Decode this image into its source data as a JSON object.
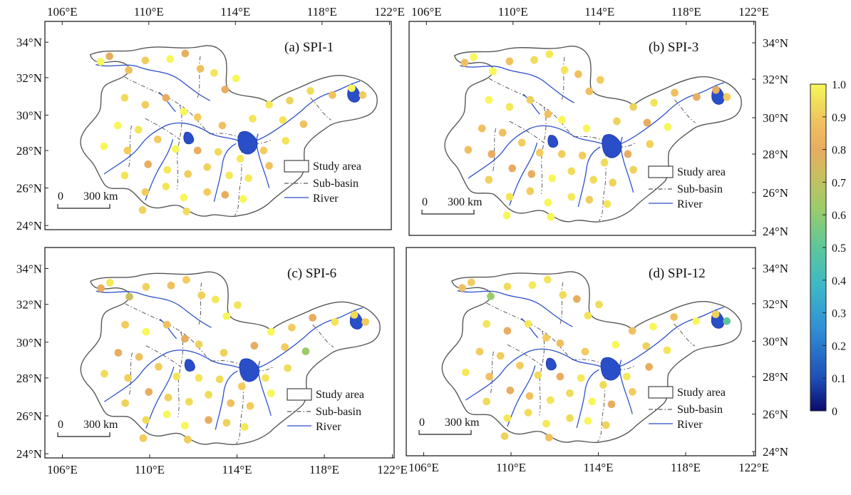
{
  "panels": [
    {
      "id": "a",
      "title": "(a) SPI-1",
      "stations": [
        [
          0.08,
          0.85
        ],
        [
          0.1,
          0.98
        ],
        [
          0.05,
          0.78
        ],
        [
          0.32,
          0.85
        ],
        [
          0.56,
          0.8
        ],
        [
          0.75,
          0.8
        ],
        [
          0.92,
          0.82
        ],
        [
          0.42,
          0.72
        ],
        [
          0.97,
          0.65
        ],
        [
          0.7,
          0.62
        ],
        [
          0.88,
          0.55
        ],
        [
          0.93,
          0.4
        ],
        [
          0.9,
          0.3
        ],
        [
          0.85,
          0.2
        ],
        [
          0.68,
          0.25
        ],
        [
          0.55,
          0.3
        ],
        [
          0.4,
          0.35
        ],
        [
          0.8,
          0.9
        ],
        [
          0.95,
          0.97
        ],
        [
          0.6,
          0.95
        ],
        [
          0.85,
          0.7
        ],
        [
          0.78,
          0.55
        ],
        [
          0.62,
          0.45
        ],
        [
          0.5,
          0.52
        ],
        [
          0.45,
          0.9
        ],
        [
          0.3,
          0.6
        ],
        [
          0.2,
          0.7
        ],
        [
          0.15,
          0.95
        ],
        [
          0.72,
          0.72
        ],
        [
          0.65,
          0.88
        ],
        [
          0.25,
          0.88
        ],
        [
          0.35,
          0.78
        ],
        [
          0.58,
          0.65
        ],
        [
          0.88,
          0.9
        ],
        [
          0.82,
          0.82
        ],
        [
          0.4,
          0.95
        ],
        [
          0.22,
          0.8
        ],
        [
          0.3,
          0.75
        ],
        [
          0.48,
          0.62
        ],
        [
          0.7,
          0.85
        ],
        [
          0.63,
          0.75
        ],
        [
          0.92,
          0.72
        ],
        [
          0.87,
          0.62
        ],
        [
          0.76,
          0.92
        ],
        [
          0.55,
          0.85
        ],
        [
          0.5,
          0.75
        ],
        [
          0.38,
          0.85
        ],
        [
          0.68,
          0.95
        ],
        [
          0.8,
          0.78
        ],
        [
          0.45,
          0.8
        ]
      ],
      "legend": [
        "Study area",
        "Sub-basin",
        "River"
      ],
      "scale": [
        "0",
        "300 km"
      ]
    },
    {
      "id": "b",
      "title": "(b) SPI-3",
      "stations": [],
      "legend": [
        "Study area",
        "Sub-basin",
        "River"
      ],
      "scale": [
        "0",
        "300 km"
      ]
    },
    {
      "id": "c",
      "title": "(c) SPI-6",
      "stations": [],
      "legend": [
        "Study area",
        "Sub-basin",
        "River"
      ],
      "scale": [
        "0",
        "300 km"
      ]
    },
    {
      "id": "d",
      "title": "(d) SPI-12",
      "stations": [],
      "legend": [
        "Study area",
        "Sub-basin",
        "River"
      ],
      "scale": [
        "0",
        "300 km"
      ]
    }
  ],
  "lon_ticks": [
    "106°E",
    "110°E",
    "114°E",
    "118°E",
    "122°E"
  ],
  "lat_ticks": [
    "34°N",
    "32°N",
    "30°N",
    "28°N",
    "26°N",
    "24°N"
  ],
  "colorbar": {
    "ticks": [
      "1.0",
      "0.9",
      "0.8",
      "0.7",
      "0.6",
      "0.5",
      "0.4",
      "0.3",
      "0.2",
      "0.1",
      "0"
    ],
    "stops": [
      "#0a0a6e",
      "#1f4fb8",
      "#2f8fd6",
      "#3cb8c8",
      "#5cc79a",
      "#9ccc6a",
      "#c9c060",
      "#e8ad60",
      "#f0c060",
      "#f0dc5a",
      "#f7f75a"
    ]
  },
  "colors": {
    "outline": "#555555",
    "river": "#2a4dc8",
    "subbasin": "#444444"
  }
}
